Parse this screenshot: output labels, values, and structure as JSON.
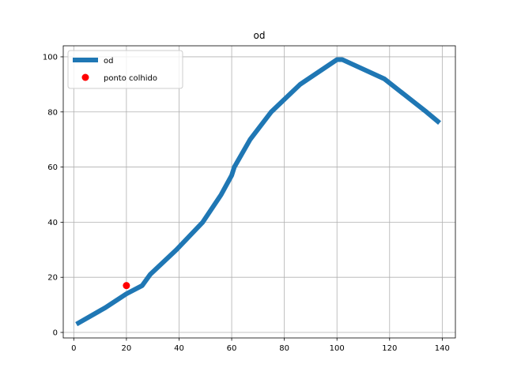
{
  "chart_data": {
    "type": "line",
    "title": "od",
    "xlabel": "",
    "ylabel": "",
    "xlim": [
      -4,
      145
    ],
    "ylim": [
      -2,
      104
    ],
    "xticks": [
      0,
      20,
      40,
      60,
      80,
      100,
      120,
      140
    ],
    "yticks": [
      0,
      20,
      40,
      60,
      80,
      100
    ],
    "grid": true,
    "legend_position": "top-left",
    "series": [
      {
        "name": "od",
        "kind": "line",
        "color": "#1f77b4",
        "x": [
          1,
          12,
          20,
          26,
          29,
          39,
          49,
          56,
          60,
          61,
          67,
          75,
          86,
          100,
          102,
          118,
          134,
          139
        ],
        "y": [
          3,
          9,
          14,
          17,
          21,
          30,
          40,
          50,
          57,
          60,
          70,
          80,
          90,
          99,
          99,
          92,
          80,
          76
        ]
      },
      {
        "name": "ponto colhido",
        "kind": "point",
        "color": "#ff0000",
        "x": [
          20
        ],
        "y": [
          17
        ]
      }
    ]
  }
}
